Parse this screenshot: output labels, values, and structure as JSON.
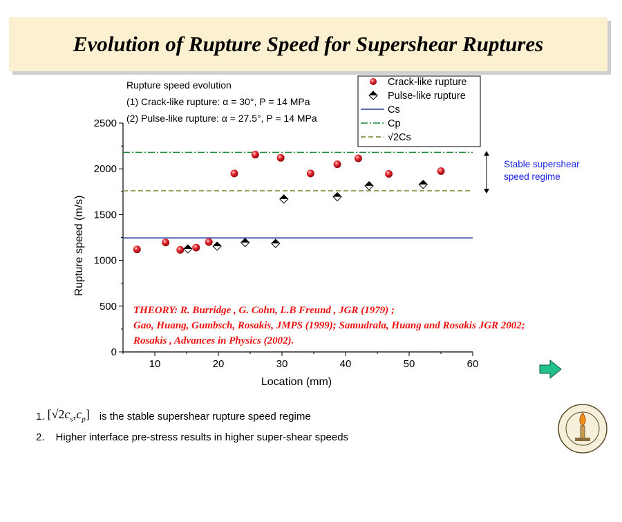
{
  "slide": {
    "title": "Evolution of Rupture Speed for Supershear Ruptures",
    "notes": [
      {
        "num": "1.",
        "formula": "[√2c_s ,c_p]",
        "formula_radical": "√2",
        "formula_cs_base": "c",
        "formula_cs_sub": "s",
        "formula_sep": ",",
        "formula_cp_base": "c",
        "formula_cp_sub": "p",
        "text": "is the stable supershear rupture speed regime"
      },
      {
        "num": "2.",
        "text": "Higher interface pre-stress results in higher super-shear speeds"
      }
    ],
    "colors": {
      "title_bg": "#fbf0cf",
      "crack": "#e8242a",
      "cs_line": "#2a3f9c",
      "cp_line": "#1f8a35",
      "sqrt2cs_line": "#7c7a2c",
      "regime_text": "#1a24e6",
      "theory_text": "#ee1111",
      "arrow_fill": "#22c08a"
    },
    "icons": {
      "next": "right-arrow-icon",
      "seal": "caltech-seal-icon"
    }
  },
  "chart_data": {
    "type": "scatter",
    "xlabel": "Location (mm)",
    "ylabel": "Rupture speed (m/s)",
    "xlim": [
      5,
      60
    ],
    "ylim": [
      0,
      2500
    ],
    "x_ticks": [
      10,
      20,
      30,
      40,
      50,
      60
    ],
    "y_ticks": [
      0,
      500,
      1000,
      1500,
      2000,
      2500
    ],
    "grid": false,
    "legend_position": "top-right",
    "annotation_lines": [
      "Rupture speed evolution",
      "(1) Crack-like rupture: α = 30°, P = 14 MPa",
      "(2) Pulse-like rupture: α = 27.5°, P = 14 MPa"
    ],
    "regime_label": [
      "Stable supershear",
      "speed regime"
    ],
    "theory_lines": [
      "THEORY:  R. Burridge , G. Cohn, L.B Freund , JGR (1979) ;",
      "Gao, Huang, Gumbsch, Rosakis, JMPS (1999); Samudrala, Huang and Rosakis JGR 2002;",
      "Rosakis , Advances in Physics (2002)."
    ],
    "series": [
      {
        "name": "Crack-like rupture",
        "marker": "circle",
        "x": [
          7.2,
          11.7,
          14.0,
          16.5,
          18.5,
          22.5,
          25.8,
          29.8,
          34.5,
          38.7,
          42.0,
          46.8,
          55.0
        ],
        "y": [
          1120,
          1195,
          1115,
          1140,
          1200,
          1950,
          2155,
          2120,
          1950,
          2050,
          2115,
          1945,
          1975
        ]
      },
      {
        "name": "Pulse-like rupture",
        "marker": "diamond",
        "x": [
          15.2,
          19.8,
          24.2,
          29.0,
          30.3,
          38.7,
          43.7,
          52.2
        ],
        "y": [
          1125,
          1155,
          1195,
          1185,
          1670,
          1695,
          1815,
          1830
        ]
      },
      {
        "name": "Cs",
        "style": "solid",
        "y": 1245
      },
      {
        "name": "Cp",
        "style": "dash-dot",
        "y": 2180
      },
      {
        "name": "√2Cs",
        "style": "dashed",
        "y": 1760
      }
    ]
  }
}
